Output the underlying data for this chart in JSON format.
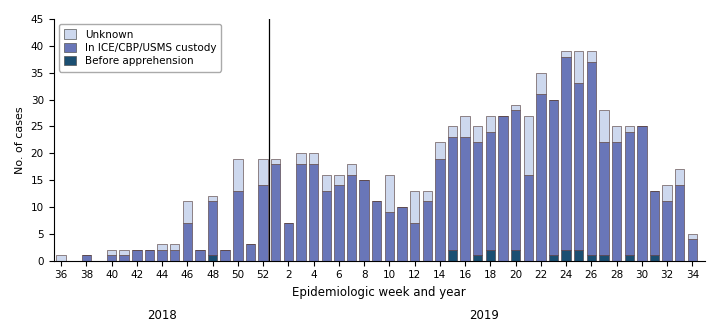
{
  "weeks_2018": [
    36,
    37,
    38,
    39,
    40,
    41,
    42,
    43,
    44,
    45,
    46,
    47,
    48,
    49,
    50,
    51,
    52
  ],
  "weeks_2019": [
    1,
    2,
    3,
    4,
    5,
    6,
    7,
    8,
    9,
    10,
    11,
    12,
    13,
    14,
    15,
    16,
    17,
    18,
    19,
    20,
    21,
    22,
    23,
    24,
    25,
    26,
    27,
    28,
    29,
    30,
    31,
    32,
    33,
    34
  ],
  "data_2018": {
    "unknown": [
      1,
      0,
      0,
      0,
      1,
      1,
      0,
      0,
      1,
      1,
      4,
      0,
      1,
      0,
      6,
      0,
      5
    ],
    "custody": [
      0,
      0,
      1,
      0,
      1,
      1,
      2,
      2,
      2,
      2,
      7,
      2,
      10,
      2,
      13,
      3,
      14
    ],
    "before": [
      0,
      0,
      0,
      0,
      0,
      0,
      0,
      0,
      0,
      0,
      0,
      0,
      1,
      0,
      0,
      0,
      0
    ]
  },
  "data_2019": {
    "unknown": [
      1,
      0,
      2,
      2,
      3,
      2,
      2,
      0,
      0,
      7,
      0,
      6,
      2,
      3,
      2,
      4,
      3,
      3,
      0,
      1,
      11,
      4,
      0,
      1,
      6,
      2,
      6,
      3,
      1,
      0,
      0,
      3,
      3,
      1
    ],
    "custody": [
      18,
      7,
      18,
      18,
      13,
      14,
      16,
      15,
      11,
      9,
      10,
      7,
      11,
      19,
      21,
      23,
      21,
      22,
      27,
      26,
      16,
      31,
      29,
      36,
      31,
      36,
      21,
      22,
      23,
      25,
      12,
      11,
      14,
      4
    ],
    "before": [
      0,
      0,
      0,
      0,
      0,
      0,
      0,
      0,
      0,
      0,
      0,
      0,
      0,
      0,
      2,
      0,
      1,
      2,
      0,
      2,
      0,
      0,
      1,
      2,
      2,
      1,
      1,
      0,
      1,
      0,
      1,
      0,
      0,
      0
    ]
  },
  "color_unknown": "#cdd8ee",
  "color_custody": "#6976b8",
  "color_before": "#1b4f72",
  "color_edge": "#4a3030",
  "ylabel": "No. of cases",
  "xlabel": "Epidemiologic week and year",
  "ylim": [
    0,
    45
  ],
  "yticks": [
    0,
    5,
    10,
    15,
    20,
    25,
    30,
    35,
    40,
    45
  ],
  "legend_labels": [
    "Unknown",
    "In ICE/CBP/USMS custody",
    "Before apprehension"
  ],
  "year_2018_label": "2018",
  "year_2019_label": "2019",
  "xticks_2018": [
    36,
    38,
    40,
    42,
    44,
    46,
    48,
    50,
    52
  ],
  "xticks_2019": [
    2,
    4,
    6,
    8,
    10,
    12,
    14,
    16,
    18,
    20,
    22,
    24,
    26,
    28,
    30,
    32,
    34
  ]
}
